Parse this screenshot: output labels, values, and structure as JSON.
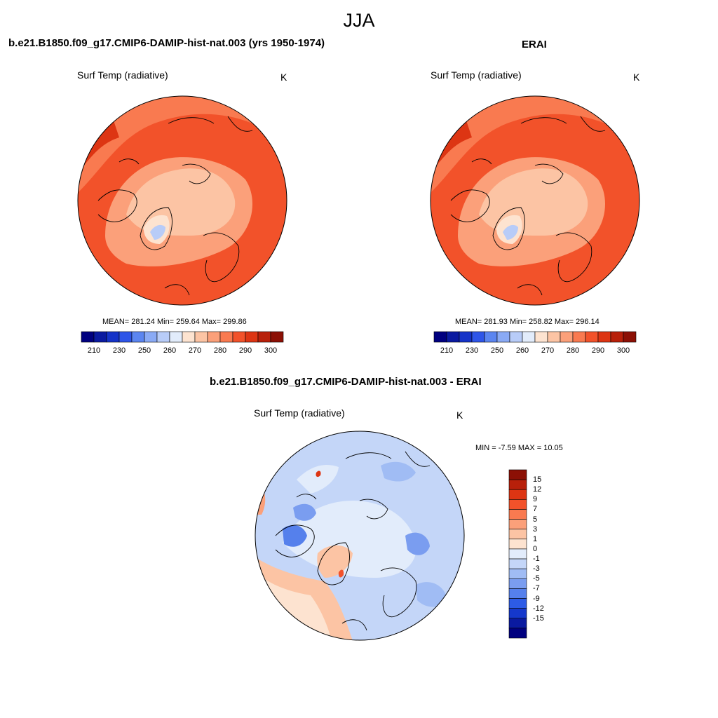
{
  "figure": {
    "season_title": "JJA",
    "variable": "Surf Temp (radiative)",
    "units": "K"
  },
  "panels": [
    {
      "id": "model",
      "title": "b.e21.B1850.f09_g17.CMIP6-DAMIP-hist-nat.003 (yrs 1950-1974)",
      "stats_text": "MEAN= 281.24  Min= 259.64  Max= 299.86",
      "mean": 281.24,
      "min": 259.64,
      "max": 299.86
    },
    {
      "id": "obs",
      "title": "ERAI",
      "stats_text": "MEAN= 281.93  Min= 258.82  Max= 296.14",
      "mean": 281.93,
      "min": 258.82,
      "max": 296.14
    },
    {
      "id": "diff",
      "title": "b.e21.B1850.f09_g17.CMIP6-DAMIP-hist-nat.003 - ERAI",
      "stats_text": "MIN =  -7.59 MAX =  10.05",
      "min": -7.59,
      "max": 10.05
    }
  ],
  "abs_colorbar": {
    "colors": [
      "#00007f",
      "#0a1aa0",
      "#1533c8",
      "#2e55e8",
      "#5b85f0",
      "#8aaaf5",
      "#b8ccf8",
      "#e2ecfb",
      "#fde3d0",
      "#fcc4a4",
      "#fba07a",
      "#f97a50",
      "#f2522a",
      "#dd3513",
      "#b8200a",
      "#8c1005"
    ],
    "tick_labels": [
      "210",
      "230",
      "250",
      "260",
      "270",
      "280",
      "290",
      "300"
    ]
  },
  "diff_colorbar": {
    "colors": [
      "#8c1005",
      "#b8200a",
      "#dd3513",
      "#f2522a",
      "#f97a50",
      "#fba07a",
      "#fcc4a4",
      "#fde3d0",
      "#e2ecfb",
      "#c4d6f8",
      "#a0bcf4",
      "#7a9df0",
      "#5580ec",
      "#2d5be6",
      "#1538cc",
      "#0a1aa0",
      "#00007f"
    ],
    "tick_labels": [
      "15",
      "12",
      "9",
      "7",
      "5",
      "3",
      "1",
      "0",
      "-1",
      "-3",
      "-5",
      "-7",
      "-9",
      "-12",
      "-15"
    ]
  }
}
